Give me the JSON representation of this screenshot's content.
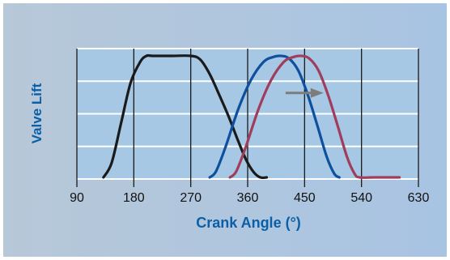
{
  "chart_data": {
    "type": "line",
    "xlabel": "Crank Angle (°)",
    "ylabel": "Valve Lift",
    "xlim": [
      90,
      630
    ],
    "ylim": [
      0,
      1
    ],
    "x_ticks": [
      "90",
      "180",
      "270",
      "360",
      "450",
      "540",
      "630"
    ],
    "grid": true,
    "series": [
      {
        "color": "#1a1a1a",
        "x": [
          132,
          145,
          160,
          175,
          190,
          200,
          210,
          240,
          270,
          285,
          300,
          315,
          330,
          345,
          358,
          370,
          380,
          390
        ],
        "y": [
          0.0,
          0.12,
          0.45,
          0.78,
          0.95,
          1.0,
          1.0,
          1.0,
          1.0,
          0.97,
          0.85,
          0.68,
          0.5,
          0.3,
          0.14,
          0.04,
          0.0,
          0.0
        ]
      },
      {
        "color": "#0e4f9e",
        "x": [
          300,
          310,
          325,
          345,
          365,
          385,
          400,
          412,
          425,
          440,
          455,
          470,
          485,
          497,
          505
        ],
        "y": [
          0.0,
          0.05,
          0.25,
          0.56,
          0.8,
          0.95,
          0.99,
          1.0,
          0.98,
          0.88,
          0.68,
          0.43,
          0.17,
          0.03,
          0.0
        ]
      },
      {
        "color": "#a13d5c",
        "x": [
          332,
          342,
          357,
          377,
          397,
          417,
          432,
          444,
          457,
          472,
          487,
          502,
          517,
          529,
          537,
          560,
          600
        ],
        "y": [
          0.0,
          0.05,
          0.25,
          0.56,
          0.8,
          0.95,
          0.99,
          1.0,
          0.98,
          0.88,
          0.68,
          0.43,
          0.17,
          0.03,
          0.0,
          0.0,
          0.0
        ]
      }
    ],
    "annotations": [
      {
        "type": "arrow",
        "from": [
          420,
          0.695
        ],
        "to": [
          480,
          0.695
        ],
        "color": "#7d7d7d"
      }
    ]
  },
  "colors": {
    "panel_gradient_left": "#b7c8d8",
    "panel_gradient_right": "#a8c4e3",
    "plot_bg": "#a6c8e4",
    "grid_vertical": "#1a1a1a",
    "grid_horizontal": "#ffffff",
    "axis_label": "#0b5fa7",
    "tick_label": "#111111"
  }
}
